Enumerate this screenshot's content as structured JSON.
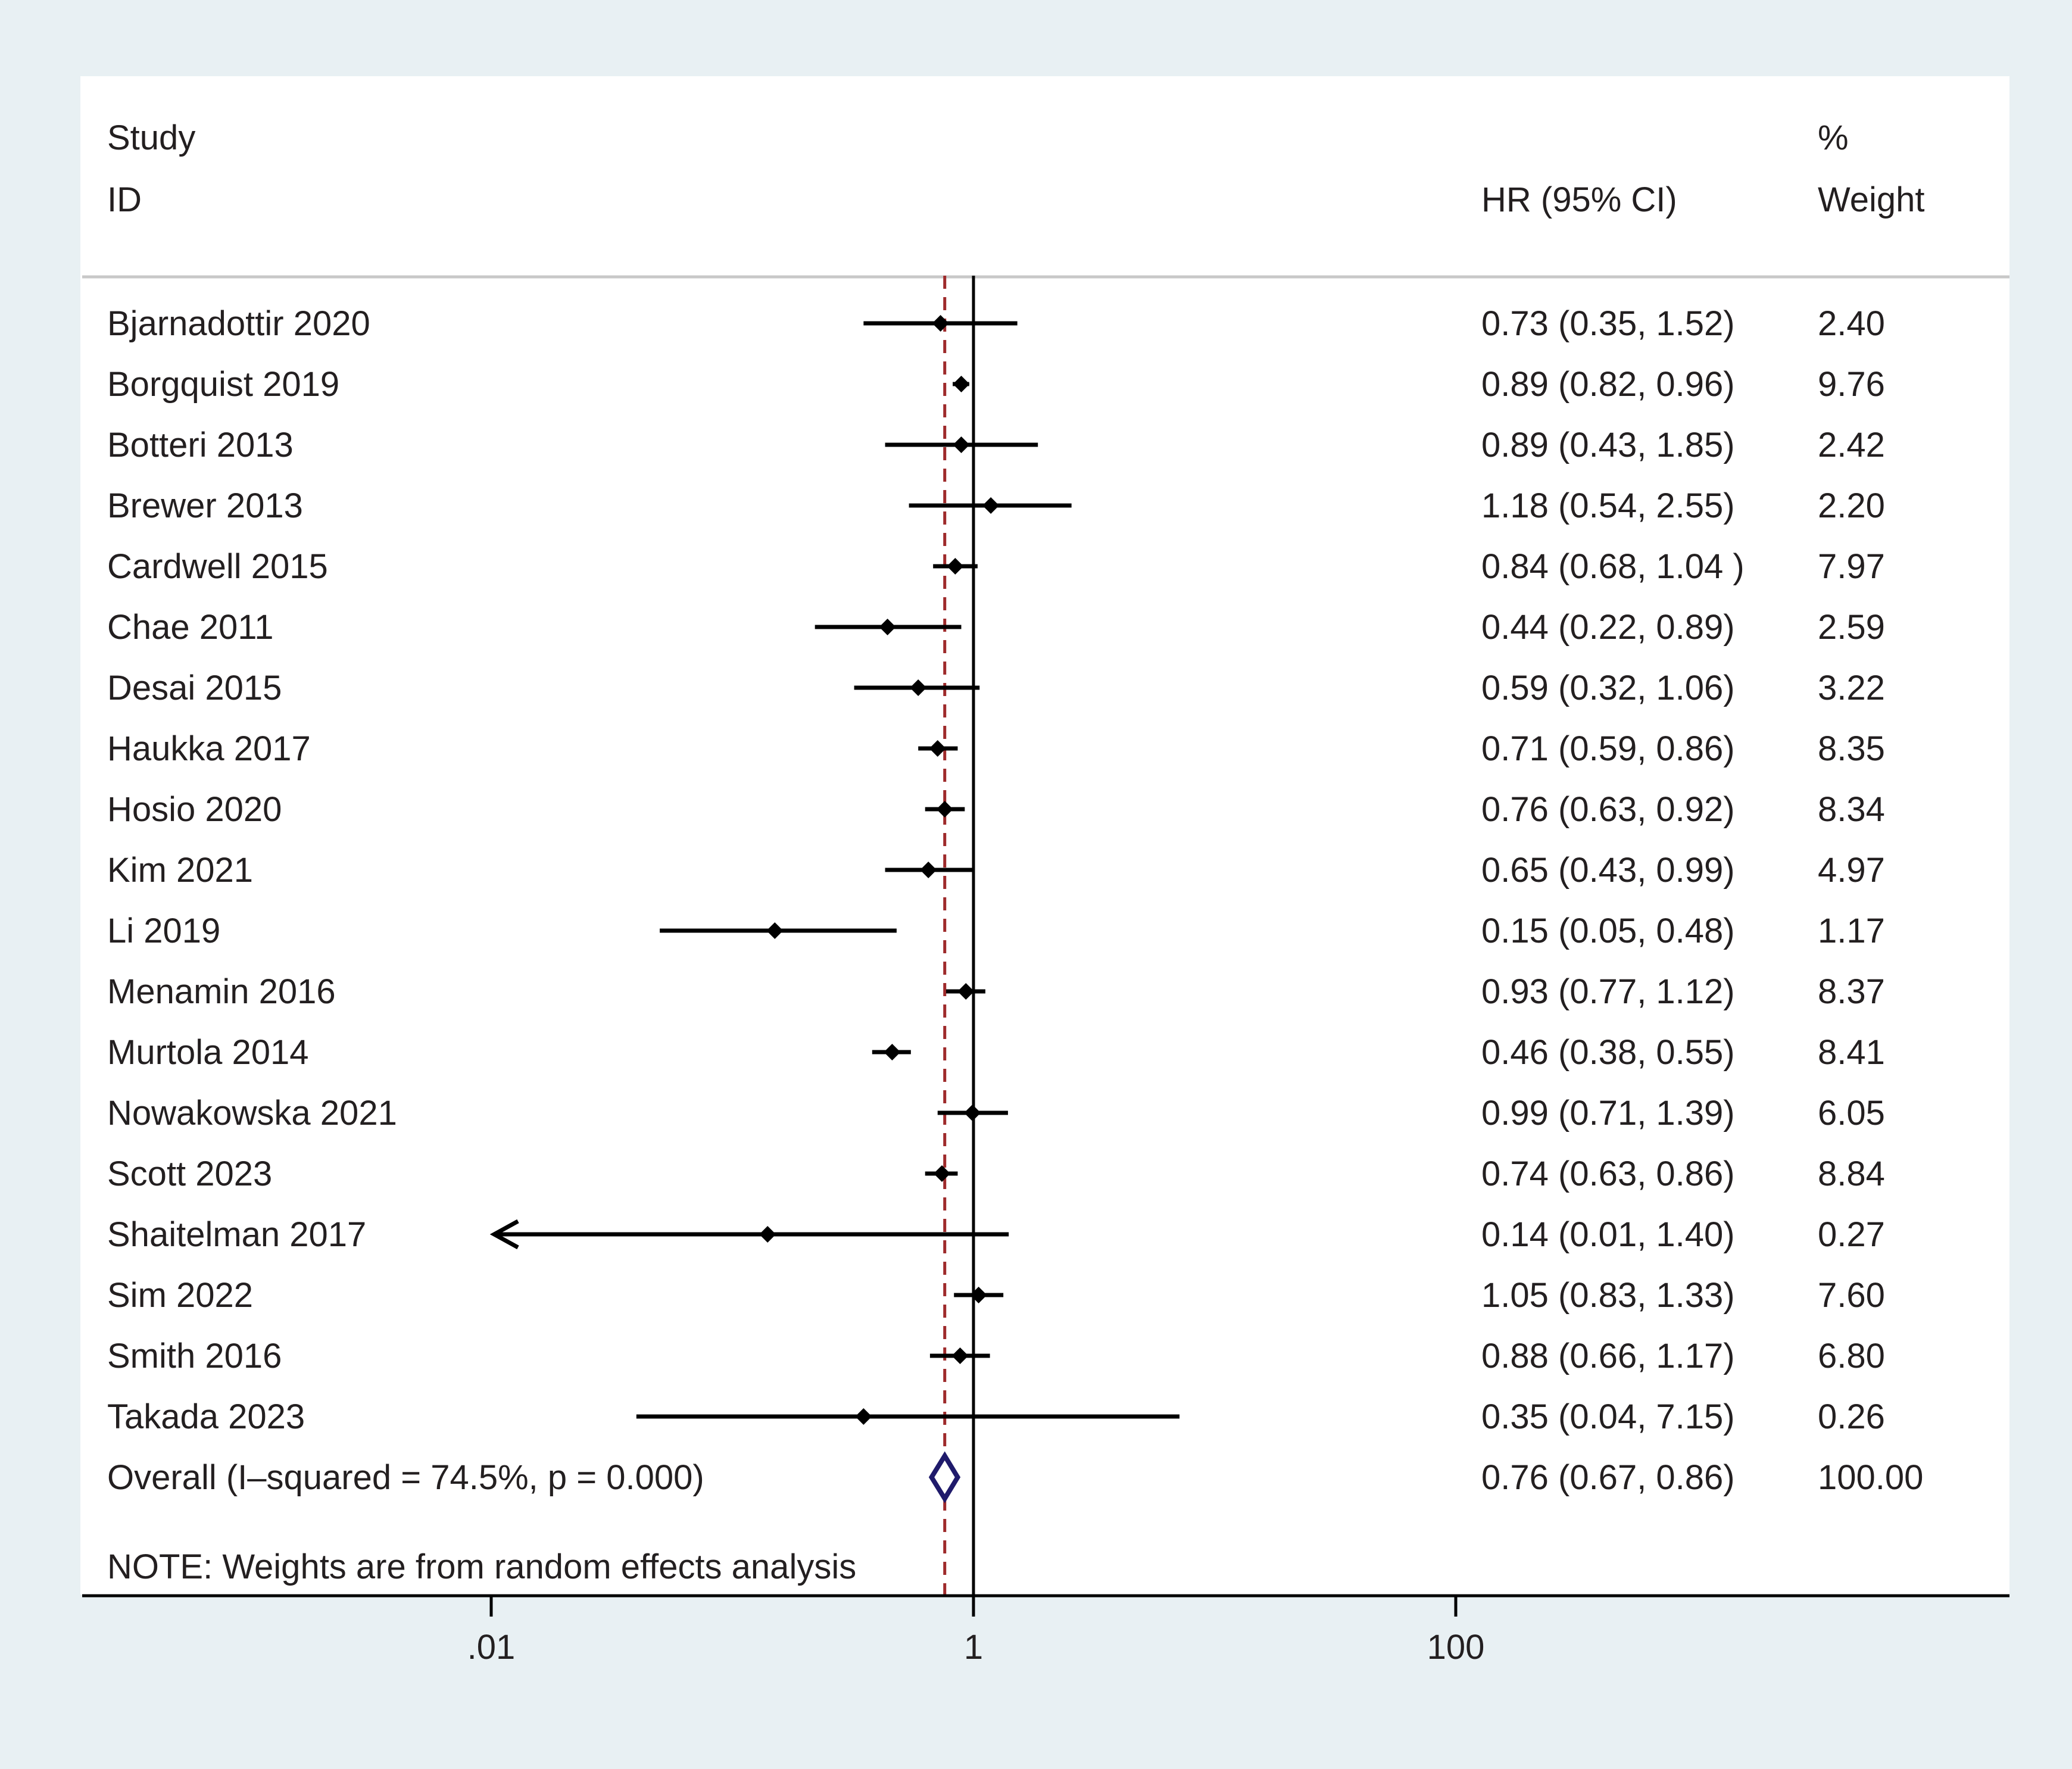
{
  "chart_data": {
    "type": "forest",
    "header": {
      "study_label": "Study",
      "id_label": "ID",
      "effect_label": "HR (95% CI)",
      "weight_pct_label": "%",
      "weight_label": "Weight"
    },
    "studies": [
      {
        "name": "Bjarnadottir 2020",
        "hr": 0.73,
        "lo": 0.35,
        "hi": 1.52,
        "text": "0.73 (0.35, 1.52)",
        "weight": 2.4,
        "weight_text": "2.40"
      },
      {
        "name": "Borgquist 2019",
        "hr": 0.89,
        "lo": 0.82,
        "hi": 0.96,
        "text": "0.89 (0.82, 0.96)",
        "weight": 9.76,
        "weight_text": "9.76"
      },
      {
        "name": "Botteri 2013",
        "hr": 0.89,
        "lo": 0.43,
        "hi": 1.85,
        "text": "0.89 (0.43, 1.85)",
        "weight": 2.42,
        "weight_text": "2.42"
      },
      {
        "name": "Brewer 2013",
        "hr": 1.18,
        "lo": 0.54,
        "hi": 2.55,
        "text": "1.18 (0.54, 2.55)",
        "weight": 2.2,
        "weight_text": "2.20"
      },
      {
        "name": "Cardwell 2015",
        "hr": 0.84,
        "lo": 0.68,
        "hi": 1.04,
        "text": "0.84 (0.68, 1.04 )",
        "weight": 7.97,
        "weight_text": "7.97"
      },
      {
        "name": "Chae 2011",
        "hr": 0.44,
        "lo": 0.22,
        "hi": 0.89,
        "text": "0.44 (0.22, 0.89)",
        "weight": 2.59,
        "weight_text": "2.59"
      },
      {
        "name": "Desai 2015",
        "hr": 0.59,
        "lo": 0.32,
        "hi": 1.06,
        "text": "0.59 (0.32, 1.06)",
        "weight": 3.22,
        "weight_text": "3.22"
      },
      {
        "name": "Haukka 2017",
        "hr": 0.71,
        "lo": 0.59,
        "hi": 0.86,
        "text": "0.71 (0.59, 0.86)",
        "weight": 8.35,
        "weight_text": "8.35"
      },
      {
        "name": "Hosio 2020",
        "hr": 0.76,
        "lo": 0.63,
        "hi": 0.92,
        "text": "0.76 (0.63, 0.92)",
        "weight": 8.34,
        "weight_text": "8.34"
      },
      {
        "name": "Kim 2021",
        "hr": 0.65,
        "lo": 0.43,
        "hi": 0.99,
        "text": "0.65 (0.43, 0.99)",
        "weight": 4.97,
        "weight_text": "4.97"
      },
      {
        "name": "Li 2019",
        "hr": 0.15,
        "lo": 0.05,
        "hi": 0.48,
        "text": "0.15 (0.05, 0.48)",
        "weight": 1.17,
        "weight_text": "1.17"
      },
      {
        "name": "Menamin 2016",
        "hr": 0.93,
        "lo": 0.77,
        "hi": 1.12,
        "text": "0.93 (0.77, 1.12)",
        "weight": 8.37,
        "weight_text": "8.37"
      },
      {
        "name": "Murtola 2014",
        "hr": 0.46,
        "lo": 0.38,
        "hi": 0.55,
        "text": "0.46 (0.38, 0.55)",
        "weight": 8.41,
        "weight_text": "8.41"
      },
      {
        "name": "Nowakowska 2021",
        "hr": 0.99,
        "lo": 0.71,
        "hi": 1.39,
        "text": "0.99 (0.71, 1.39)",
        "weight": 6.05,
        "weight_text": "6.05"
      },
      {
        "name": "Scott 2023",
        "hr": 0.74,
        "lo": 0.63,
        "hi": 0.86,
        "text": "0.74 (0.63, 0.86)",
        "weight": 8.84,
        "weight_text": "8.84"
      },
      {
        "name": "Shaitelman 2017",
        "hr": 0.14,
        "lo": 0.01,
        "hi": 1.4,
        "text": "0.14 (0.01, 1.40)",
        "weight": 0.27,
        "weight_text": "0.27",
        "truncated_left": true
      },
      {
        "name": "Sim 2022",
        "hr": 1.05,
        "lo": 0.83,
        "hi": 1.33,
        "text": "1.05 (0.83, 1.33)",
        "weight": 7.6,
        "weight_text": "7.60"
      },
      {
        "name": "Smith 2016",
        "hr": 0.88,
        "lo": 0.66,
        "hi": 1.17,
        "text": "0.88 (0.66, 1.17)",
        "weight": 6.8,
        "weight_text": "6.80"
      },
      {
        "name": "Takada 2023",
        "hr": 0.35,
        "lo": 0.04,
        "hi": 7.15,
        "text": "0.35 (0.04, 7.15)",
        "weight": 0.26,
        "weight_text": "0.26"
      }
    ],
    "overall": {
      "name": "Overall  (I–squared = 74.5%, p = 0.000)",
      "hr": 0.76,
      "lo": 0.67,
      "hi": 0.86,
      "text": "0.76 (0.67, 0.86)",
      "weight_text": "100.00"
    },
    "note": "NOTE: Weights are from random effects analysis",
    "x_axis": {
      "scale": "log",
      "ticks": [
        0.01,
        1,
        100
      ],
      "tick_labels": [
        ".01",
        "1",
        "100"
      ],
      "null_line": 1
    },
    "colors": {
      "marker": "#000000",
      "null_line": "#000000",
      "overall_line": "#9e2a2b",
      "overall_diamond": "#1f1a6b",
      "separator": "#c8c8c8"
    }
  }
}
